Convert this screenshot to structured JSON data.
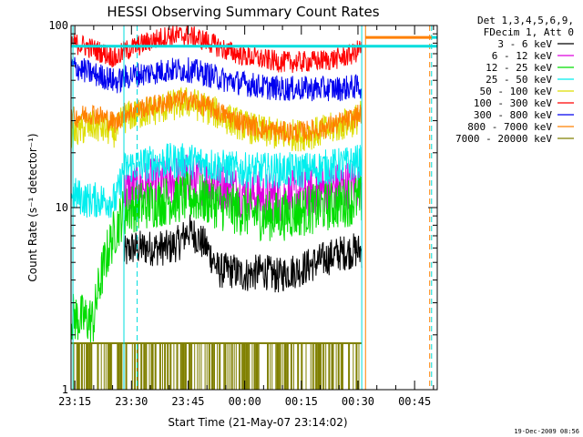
{
  "chart_data": {
    "type": "line",
    "title": "HESSI Observing Summary Count Rates",
    "xlabel": "Start Time (21-May-07 23:14:02)",
    "ylabel": "Count Rate (s⁻¹ detector⁻¹)",
    "y_scale": "log",
    "ylim": [
      1,
      100
    ],
    "xlim_minutes": [
      -1,
      96
    ],
    "x_ticks": [
      {
        "label": "23:15",
        "minute": 0
      },
      {
        "label": "23:30",
        "minute": 15
      },
      {
        "label": "23:45",
        "minute": 30
      },
      {
        "label": "00:00",
        "minute": 45
      },
      {
        "label": "00:15",
        "minute": 60
      },
      {
        "label": "00:30",
        "minute": 75
      },
      {
        "label": "00:45",
        "minute": 90
      }
    ],
    "y_tick_labels": [
      {
        "label": "100",
        "value": 100
      },
      {
        "label": "10",
        "value": 10
      },
      {
        "label": "1",
        "value": 1
      }
    ],
    "legend": {
      "placement": "right",
      "header": [
        "Det 1,3,4,5,6,9,",
        "FDecim 1, Att 0"
      ]
    },
    "series": [
      {
        "name": "3 - 6 keV",
        "color": "#000000",
        "x": [
          13,
          15,
          20,
          22,
          25,
          28,
          30,
          32,
          35,
          37,
          38,
          40,
          42,
          44,
          46,
          48,
          50,
          52,
          54,
          56,
          58,
          60,
          62,
          64,
          66,
          68,
          70,
          72,
          74,
          76
        ],
        "y": [
          5.5,
          6,
          6,
          6,
          6,
          6.5,
          7.5,
          7,
          6,
          5,
          4.5,
          4.5,
          4.5,
          4.3,
          4.3,
          4.4,
          4.5,
          4.3,
          4.2,
          4.4,
          4.5,
          4.6,
          4.8,
          5,
          5.2,
          5.4,
          5.6,
          5.7,
          5.8,
          5.8
        ]
      },
      {
        "name": "6 - 12 keV",
        "color": "#dd00dd",
        "x": [
          13,
          15,
          20,
          25,
          30,
          35,
          40,
          45,
          50,
          55,
          60,
          65,
          70,
          74,
          76
        ],
        "y": [
          12,
          12.5,
          13.5,
          14,
          14.5,
          14,
          13,
          12,
          11.5,
          11.5,
          11.8,
          12.5,
          13,
          13.5,
          13.5
        ]
      },
      {
        "name": "12 - 25 keV",
        "color": "#00dd00",
        "x": [
          -1,
          5,
          13,
          15,
          20,
          25,
          30,
          35,
          40,
          45,
          50,
          55,
          60,
          65,
          70,
          74,
          76
        ],
        "y": [
          2.5,
          2.4,
          9.5,
          10,
          10.5,
          11,
          11.5,
          11,
          10,
          9.5,
          9,
          9,
          9.5,
          10,
          10.5,
          11,
          11
        ]
      },
      {
        "name": "25 - 50 keV",
        "color": "#00eeee",
        "x": [
          -1,
          3,
          6,
          9,
          11,
          13,
          15,
          20,
          25,
          30,
          35,
          40,
          45,
          50,
          55,
          60,
          65,
          70,
          74,
          76
        ],
        "y": [
          12,
          11,
          11,
          11,
          11,
          16,
          17,
          17.5,
          18,
          18,
          17.5,
          16.5,
          16,
          16,
          16,
          16,
          16.5,
          17,
          17.5,
          18
        ]
      },
      {
        "name": "50 - 100 keV",
        "color": "#dddd00",
        "x": [
          -1,
          2,
          5,
          8,
          11,
          13,
          15,
          20,
          25,
          30,
          35,
          40,
          45,
          50,
          55,
          60,
          65,
          70,
          74,
          76
        ],
        "y": [
          25,
          27,
          28,
          27,
          26,
          31,
          32,
          34,
          36,
          38,
          35,
          31,
          28,
          26,
          25,
          25,
          26,
          28,
          30,
          32
        ]
      },
      {
        "name": "100 - 300 keV",
        "color": "#ff0000",
        "x": [
          -1,
          2,
          5,
          8,
          11,
          13,
          15,
          20,
          25,
          30,
          35,
          40,
          45,
          50,
          55,
          60,
          65,
          70,
          74,
          76
        ],
        "y": [
          80,
          78,
          74,
          70,
          66,
          72,
          75,
          82,
          88,
          88,
          82,
          73,
          68,
          65,
          63,
          63,
          64,
          66,
          70,
          76
        ]
      },
      {
        "name": "300 - 800 keV",
        "color": "#0000ee",
        "x": [
          -1,
          2,
          5,
          8,
          11,
          13,
          15,
          20,
          25,
          30,
          35,
          40,
          45,
          50,
          55,
          60,
          65,
          70,
          74,
          76
        ],
        "y": [
          60,
          57,
          54,
          52,
          49,
          51,
          53,
          55,
          57,
          57,
          54,
          50,
          48,
          46,
          45,
          45,
          45,
          45,
          46,
          46
        ]
      },
      {
        "name": "800 - 7000 keV",
        "color": "#ff8000",
        "x": [
          -1,
          2,
          5,
          8,
          11,
          13,
          15,
          20,
          25,
          30,
          35,
          40,
          45,
          50,
          55,
          60,
          65,
          70,
          74,
          76
        ],
        "y": [
          31,
          32,
          33,
          31,
          29,
          33,
          34,
          36,
          38,
          39,
          36,
          32,
          29,
          27,
          26,
          26,
          27,
          29,
          31,
          33
        ]
      },
      {
        "name": "7000 - 20000 keV",
        "color": "#808000",
        "x": [
          -1,
          76
        ],
        "y": [
          1.8,
          1.8
        ]
      }
    ]
  },
  "footer": {
    "timestamp": "19-Dec-2009 08:56"
  }
}
